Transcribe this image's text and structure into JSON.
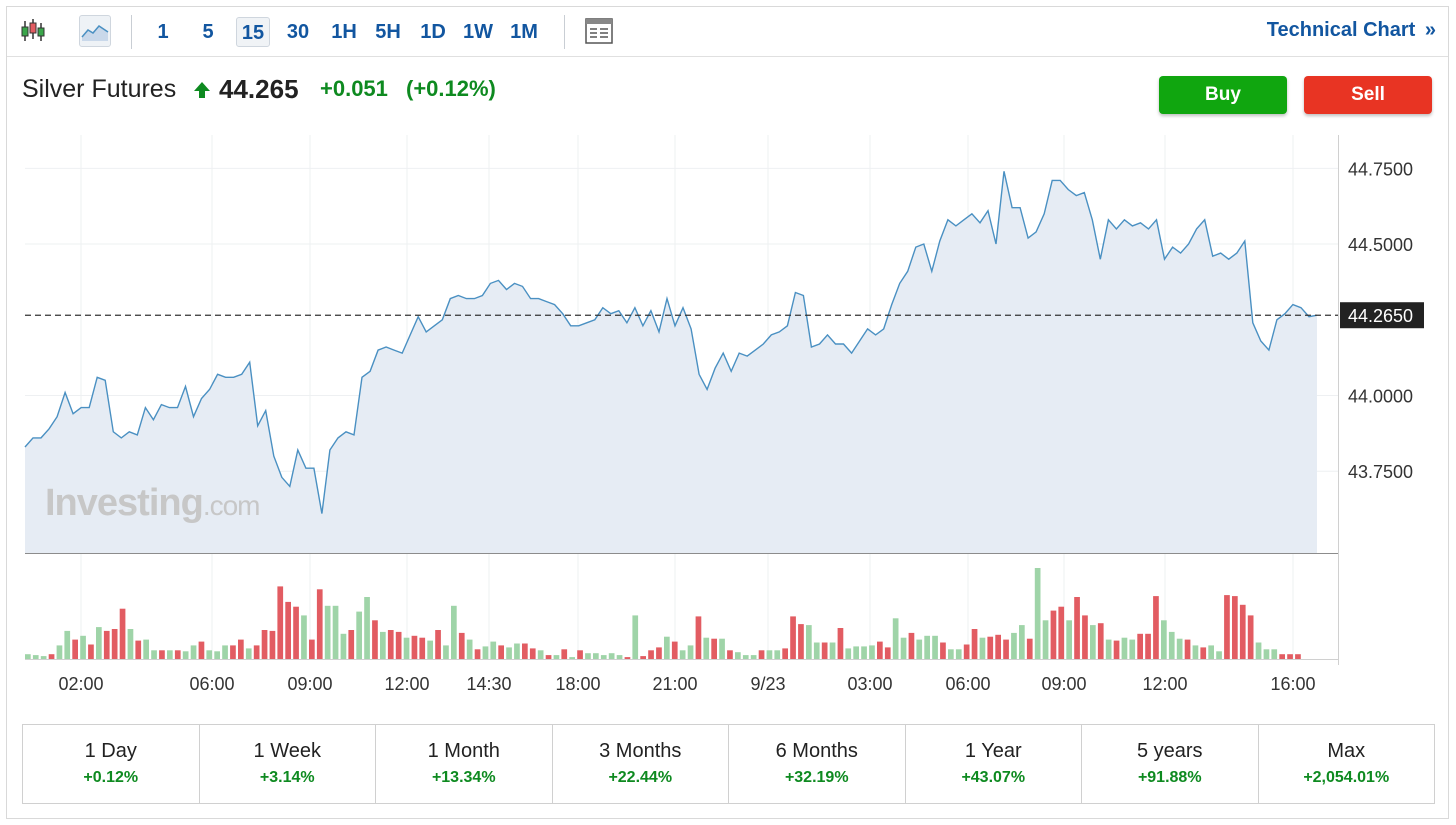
{
  "toolbar": {
    "timeframes": [
      "1",
      "5",
      "15",
      "30",
      "1H",
      "5H",
      "1D",
      "1W",
      "1M"
    ],
    "active_timeframe": "15",
    "technical_chart_label": "Technical Chart",
    "technical_chart_icon": "double-chevron-right-icon"
  },
  "header": {
    "title": "Silver Futures",
    "last": "44.265",
    "change": "+0.051",
    "change_pct": "(+0.12%)",
    "direction_icon": "up-arrow-icon",
    "buy_label": "Buy",
    "sell_label": "Sell"
  },
  "watermark": {
    "brand": "Investing",
    "suffix": ".com"
  },
  "colors": {
    "line": "#4a90c2",
    "area": "#e6ecf4",
    "up_volume": "#9fd4a8",
    "down_volume": "#e25c62",
    "positive": "#0e8a20",
    "link": "#1256a0",
    "buy": "#10a60f",
    "sell": "#e83423"
  },
  "chart_data": {
    "type": "area",
    "title": "Silver Futures",
    "x_tick_labels": [
      "02:00",
      "06:00",
      "09:00",
      "12:00",
      "14:30",
      "18:00",
      "21:00",
      "9/23",
      "03:00",
      "06:00",
      "09:00",
      "12:00",
      "16:00"
    ],
    "y_tick_labels": [
      "44.7500",
      "44.5000",
      "44.0000",
      "43.7500"
    ],
    "ylim": [
      43.48,
      44.86
    ],
    "last_price": 44.265,
    "last_price_label": "44.2650",
    "grid": true,
    "series": [
      {
        "values": [
          43.83,
          43.86,
          43.86,
          43.89,
          43.93,
          44.01,
          43.94,
          43.96,
          43.96,
          44.06,
          44.05,
          43.88,
          43.86,
          43.88,
          43.87,
          43.96,
          43.92,
          43.97,
          43.96,
          43.96,
          44.03,
          43.93,
          43.99,
          44.02,
          44.07,
          44.06,
          44.06,
          44.07,
          44.11,
          43.9,
          43.95,
          43.8,
          43.73,
          43.7,
          43.82,
          43.76,
          43.76,
          43.61,
          43.82,
          43.86,
          43.88,
          43.87,
          44.06,
          44.08,
          44.15,
          44.16,
          44.15,
          44.14,
          44.2,
          44.26,
          44.21,
          44.23,
          44.25,
          44.32,
          44.33,
          44.32,
          44.32,
          44.33,
          44.37,
          44.38,
          44.35,
          44.37,
          44.36,
          44.32,
          44.32,
          44.31,
          44.3,
          44.27,
          44.23,
          44.23,
          44.24,
          44.25,
          44.29,
          44.27,
          44.28,
          44.24,
          44.29,
          44.23,
          44.28,
          44.21,
          44.32,
          44.23,
          44.29,
          44.22,
          44.07,
          44.02,
          44.09,
          44.14,
          44.08,
          44.14,
          44.13,
          44.15,
          44.17,
          44.2,
          44.21,
          44.23,
          44.34,
          44.33,
          44.16,
          44.17,
          44.2,
          44.17,
          44.17,
          44.14,
          44.18,
          44.22,
          44.2,
          44.22,
          44.3,
          44.37,
          44.41,
          44.49,
          44.5,
          44.41,
          44.51,
          44.58,
          44.56,
          44.58,
          44.6,
          44.57,
          44.61,
          44.5,
          44.74,
          44.62,
          44.62,
          44.52,
          44.54,
          44.6,
          44.71,
          44.71,
          44.68,
          44.66,
          44.67,
          44.58,
          44.45,
          44.58,
          44.55,
          44.58,
          44.56,
          44.57,
          44.55,
          44.58,
          44.45,
          44.49,
          44.47,
          44.5,
          44.55,
          44.58,
          44.46,
          44.47,
          44.45,
          44.47,
          44.51,
          44.24,
          44.18,
          44.15,
          44.25,
          44.27,
          44.3,
          44.29,
          44.26,
          44.265
        ]
      }
    ],
    "volume": [
      {
        "v": 5,
        "c": "g"
      },
      {
        "v": 4,
        "c": "g"
      },
      {
        "v": 3,
        "c": "g"
      },
      {
        "v": 5,
        "c": "r"
      },
      {
        "v": 14,
        "c": "g"
      },
      {
        "v": 29,
        "c": "g"
      },
      {
        "v": 20,
        "c": "r"
      },
      {
        "v": 24,
        "c": "g"
      },
      {
        "v": 15,
        "c": "r"
      },
      {
        "v": 33,
        "c": "g"
      },
      {
        "v": 29,
        "c": "r"
      },
      {
        "v": 31,
        "c": "r"
      },
      {
        "v": 52,
        "c": "r"
      },
      {
        "v": 31,
        "c": "g"
      },
      {
        "v": 19,
        "c": "r"
      },
      {
        "v": 20,
        "c": "g"
      },
      {
        "v": 9,
        "c": "g"
      },
      {
        "v": 9,
        "c": "r"
      },
      {
        "v": 9,
        "c": "g"
      },
      {
        "v": 9,
        "c": "r"
      },
      {
        "v": 8,
        "c": "g"
      },
      {
        "v": 14,
        "c": "g"
      },
      {
        "v": 18,
        "c": "r"
      },
      {
        "v": 9,
        "c": "g"
      },
      {
        "v": 8,
        "c": "g"
      },
      {
        "v": 14,
        "c": "g"
      },
      {
        "v": 14,
        "c": "r"
      },
      {
        "v": 20,
        "c": "r"
      },
      {
        "v": 11,
        "c": "g"
      },
      {
        "v": 14,
        "c": "r"
      },
      {
        "v": 30,
        "c": "r"
      },
      {
        "v": 29,
        "c": "r"
      },
      {
        "v": 75,
        "c": "r"
      },
      {
        "v": 59,
        "c": "r"
      },
      {
        "v": 54,
        "c": "r"
      },
      {
        "v": 45,
        "c": "g"
      },
      {
        "v": 20,
        "c": "r"
      },
      {
        "v": 72,
        "c": "r"
      },
      {
        "v": 55,
        "c": "g"
      },
      {
        "v": 55,
        "c": "g"
      },
      {
        "v": 26,
        "c": "g"
      },
      {
        "v": 30,
        "c": "r"
      },
      {
        "v": 49,
        "c": "g"
      },
      {
        "v": 64,
        "c": "g"
      },
      {
        "v": 40,
        "c": "r"
      },
      {
        "v": 28,
        "c": "g"
      },
      {
        "v": 30,
        "c": "r"
      },
      {
        "v": 28,
        "c": "r"
      },
      {
        "v": 22,
        "c": "g"
      },
      {
        "v": 24,
        "c": "r"
      },
      {
        "v": 22,
        "c": "r"
      },
      {
        "v": 19,
        "c": "g"
      },
      {
        "v": 30,
        "c": "r"
      },
      {
        "v": 14,
        "c": "g"
      },
      {
        "v": 55,
        "c": "g"
      },
      {
        "v": 27,
        "c": "r"
      },
      {
        "v": 20,
        "c": "g"
      },
      {
        "v": 10,
        "c": "r"
      },
      {
        "v": 13,
        "c": "g"
      },
      {
        "v": 18,
        "c": "g"
      },
      {
        "v": 14,
        "c": "r"
      },
      {
        "v": 12,
        "c": "g"
      },
      {
        "v": 16,
        "c": "g"
      },
      {
        "v": 16,
        "c": "r"
      },
      {
        "v": 11,
        "c": "r"
      },
      {
        "v": 9,
        "c": "g"
      },
      {
        "v": 4,
        "c": "r"
      },
      {
        "v": 4,
        "c": "g"
      },
      {
        "v": 10,
        "c": "r"
      },
      {
        "v": 2,
        "c": "g"
      },
      {
        "v": 9,
        "c": "r"
      },
      {
        "v": 6,
        "c": "g"
      },
      {
        "v": 6,
        "c": "g"
      },
      {
        "v": 4,
        "c": "g"
      },
      {
        "v": 6,
        "c": "g"
      },
      {
        "v": 4,
        "c": "g"
      },
      {
        "v": 2,
        "c": "r"
      },
      {
        "v": 45,
        "c": "g"
      },
      {
        "v": 3,
        "c": "r"
      },
      {
        "v": 9,
        "c": "r"
      },
      {
        "v": 12,
        "c": "r"
      },
      {
        "v": 23,
        "c": "g"
      },
      {
        "v": 18,
        "c": "r"
      },
      {
        "v": 9,
        "c": "g"
      },
      {
        "v": 14,
        "c": "g"
      },
      {
        "v": 44,
        "c": "r"
      },
      {
        "v": 22,
        "c": "g"
      },
      {
        "v": 21,
        "c": "r"
      },
      {
        "v": 21,
        "c": "g"
      },
      {
        "v": 9,
        "c": "r"
      },
      {
        "v": 7,
        "c": "g"
      },
      {
        "v": 4,
        "c": "g"
      },
      {
        "v": 4,
        "c": "g"
      },
      {
        "v": 9,
        "c": "r"
      },
      {
        "v": 9,
        "c": "g"
      },
      {
        "v": 9,
        "c": "g"
      },
      {
        "v": 11,
        "c": "r"
      },
      {
        "v": 44,
        "c": "r"
      },
      {
        "v": 36,
        "c": "r"
      },
      {
        "v": 35,
        "c": "g"
      },
      {
        "v": 17,
        "c": "g"
      },
      {
        "v": 17,
        "c": "r"
      },
      {
        "v": 17,
        "c": "g"
      },
      {
        "v": 32,
        "c": "r"
      },
      {
        "v": 11,
        "c": "g"
      },
      {
        "v": 13,
        "c": "g"
      },
      {
        "v": 13,
        "c": "g"
      },
      {
        "v": 14,
        "c": "g"
      },
      {
        "v": 18,
        "c": "r"
      },
      {
        "v": 12,
        "c": "r"
      },
      {
        "v": 42,
        "c": "g"
      },
      {
        "v": 22,
        "c": "g"
      },
      {
        "v": 27,
        "c": "r"
      },
      {
        "v": 20,
        "c": "g"
      },
      {
        "v": 24,
        "c": "g"
      },
      {
        "v": 24,
        "c": "g"
      },
      {
        "v": 17,
        "c": "r"
      },
      {
        "v": 10,
        "c": "g"
      },
      {
        "v": 10,
        "c": "g"
      },
      {
        "v": 15,
        "c": "r"
      },
      {
        "v": 31,
        "c": "r"
      },
      {
        "v": 22,
        "c": "g"
      },
      {
        "v": 23,
        "c": "r"
      },
      {
        "v": 25,
        "c": "r"
      },
      {
        "v": 20,
        "c": "r"
      },
      {
        "v": 27,
        "c": "g"
      },
      {
        "v": 35,
        "c": "g"
      },
      {
        "v": 21,
        "c": "r"
      },
      {
        "v": 94,
        "c": "g"
      },
      {
        "v": 40,
        "c": "g"
      },
      {
        "v": 50,
        "c": "r"
      },
      {
        "v": 54,
        "c": "r"
      },
      {
        "v": 40,
        "c": "g"
      },
      {
        "v": 64,
        "c": "r"
      },
      {
        "v": 45,
        "c": "r"
      },
      {
        "v": 35,
        "c": "g"
      },
      {
        "v": 37,
        "c": "r"
      },
      {
        "v": 20,
        "c": "g"
      },
      {
        "v": 19,
        "c": "r"
      },
      {
        "v": 22,
        "c": "g"
      },
      {
        "v": 20,
        "c": "g"
      },
      {
        "v": 26,
        "c": "r"
      },
      {
        "v": 26,
        "c": "r"
      },
      {
        "v": 65,
        "c": "r"
      },
      {
        "v": 40,
        "c": "g"
      },
      {
        "v": 28,
        "c": "g"
      },
      {
        "v": 21,
        "c": "g"
      },
      {
        "v": 20,
        "c": "r"
      },
      {
        "v": 14,
        "c": "g"
      },
      {
        "v": 12,
        "c": "r"
      },
      {
        "v": 14,
        "c": "g"
      },
      {
        "v": 8,
        "c": "g"
      },
      {
        "v": 66,
        "c": "r"
      },
      {
        "v": 65,
        "c": "r"
      },
      {
        "v": 56,
        "c": "r"
      },
      {
        "v": 45,
        "c": "r"
      },
      {
        "v": 17,
        "c": "g"
      },
      {
        "v": 10,
        "c": "g"
      },
      {
        "v": 10,
        "c": "g"
      },
      {
        "v": 5,
        "c": "r"
      },
      {
        "v": 5,
        "c": "r"
      },
      {
        "v": 5,
        "c": "r"
      }
    ]
  },
  "performance": [
    {
      "label": "1 Day",
      "value": "+0.12%"
    },
    {
      "label": "1 Week",
      "value": "+3.14%"
    },
    {
      "label": "1 Month",
      "value": "+13.34%"
    },
    {
      "label": "3 Months",
      "value": "+22.44%"
    },
    {
      "label": "6 Months",
      "value": "+32.19%"
    },
    {
      "label": "1 Year",
      "value": "+43.07%"
    },
    {
      "label": "5 years",
      "value": "+91.88%"
    },
    {
      "label": "Max",
      "value": "+2,054.01%"
    }
  ]
}
